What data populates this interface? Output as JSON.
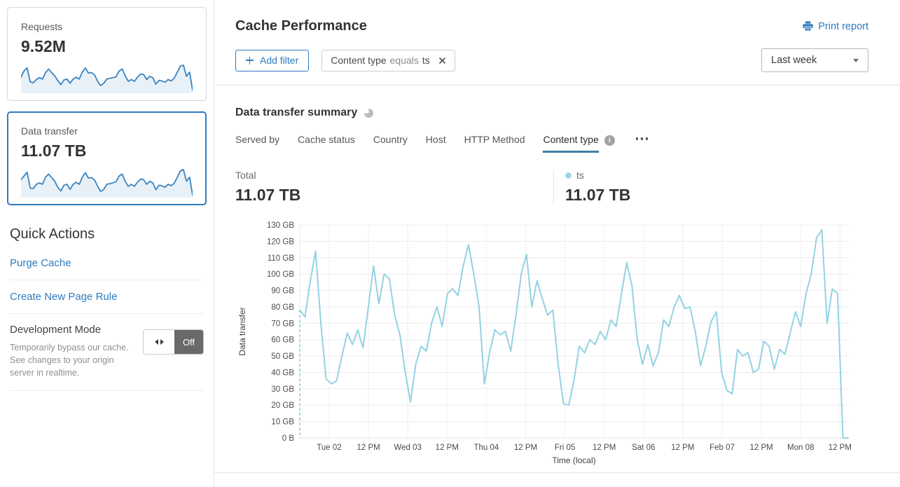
{
  "colors": {
    "accent_blue": "#2f7bbf",
    "chart_line": "#93d2e3",
    "legend_dot": "#9fd8e8",
    "tab_underline": "#3d7f9f",
    "sparkline_line": "#3e85c0",
    "sparkline_fill": "#e9f1f8",
    "selected_card_border": "#2f7bbf",
    "toggle_off_bg": "#67696b"
  },
  "sidebar": {
    "cards": [
      {
        "label": "Requests",
        "value": "9.52M",
        "selected": false
      },
      {
        "label": "Data transfer",
        "value": "11.07 TB",
        "selected": true
      }
    ],
    "quick_actions": {
      "title": "Quick Actions",
      "links": [
        {
          "label": "Purge Cache"
        },
        {
          "label": "Create New Page Rule"
        }
      ],
      "dev_mode": {
        "title": "Development Mode",
        "description": "Temporarily bypass our cache. See changes to your origin server in realtime.",
        "toggle_state": "Off"
      }
    }
  },
  "header": {
    "title": "Cache Performance",
    "print_label": "Print report"
  },
  "filters": {
    "add_filter_label": "Add filter",
    "chip": {
      "field": "Content type",
      "operator": "equals",
      "value": "ts"
    },
    "time_range": "Last week"
  },
  "summary": {
    "title": "Data transfer summary",
    "tabs": [
      "Served by",
      "Cache status",
      "Country",
      "Host",
      "HTTP Method",
      "Content type"
    ],
    "active_tab": "Content type",
    "stats": [
      {
        "label": "Total",
        "value": "11.07 TB"
      },
      {
        "label": "ts",
        "value": "11.07 TB",
        "dot_color": "#9fd8e8"
      }
    ]
  },
  "chart_data": [
    {
      "type": "line",
      "title": "Data transfer summary",
      "xlabel": "Time (local)",
      "ylabel": "Data transfer",
      "unit": "GB",
      "ylim": [
        0,
        130
      ],
      "grid": true,
      "line_color": "#93d2e3",
      "start_dashed": true,
      "legend_position": "top-right-stat",
      "x_ticks": [
        "Tue 02",
        "12 PM",
        "Wed 03",
        "12 PM",
        "Thu 04",
        "12 PM",
        "Fri 05",
        "12 PM",
        "Sat 06",
        "12 PM",
        "Feb 07",
        "12 PM",
        "Mon 08",
        "12 PM"
      ],
      "y_ticks": [
        "130 GB",
        "120 GB",
        "110 GB",
        "100 GB",
        "90 GB",
        "80 GB",
        "70 GB",
        "60 GB",
        "50 GB",
        "40 GB",
        "30 GB",
        "20 GB",
        "10 GB",
        "0 B"
      ],
      "series": [
        {
          "name": "ts",
          "total": "11.07 TB",
          "values_gb": [
            78,
            74,
            96,
            114,
            70,
            36,
            33,
            35,
            50,
            64,
            57,
            66,
            55,
            80,
            105,
            82,
            100,
            97,
            75,
            63,
            40,
            22,
            45,
            56,
            53,
            70,
            80,
            68,
            88,
            91,
            87,
            105,
            118,
            100,
            80,
            33,
            52,
            66,
            63,
            65,
            53,
            75,
            100,
            112,
            80,
            96,
            85,
            75,
            78,
            45,
            21,
            20,
            35,
            56,
            52,
            60,
            57,
            65,
            60,
            72,
            68,
            88,
            107,
            93,
            60,
            45,
            57,
            44,
            52,
            72,
            68,
            80,
            87,
            79,
            80,
            65,
            44,
            56,
            71,
            77,
            40,
            29,
            27,
            54,
            50,
            52,
            40,
            42,
            59,
            56,
            42,
            54,
            51,
            64,
            77,
            68,
            88,
            100,
            122,
            127,
            70,
            91,
            88,
            0,
            0
          ]
        }
      ]
    },
    {
      "type": "area",
      "title": "Requests sparkline",
      "values": [
        60,
        88,
        100,
        40,
        36,
        50,
        58,
        52,
        80,
        95,
        80,
        66,
        45,
        28,
        48,
        52,
        34,
        52,
        60,
        52,
        82,
        100,
        78,
        80,
        70,
        42,
        24,
        34,
        52,
        55,
        58,
        62,
        86,
        96,
        66,
        42,
        50,
        42,
        60,
        74,
        72,
        50,
        64,
        58,
        30,
        46,
        44,
        38,
        50,
        44,
        56,
        82,
        108,
        112,
        64,
        82,
        4
      ]
    },
    {
      "type": "area",
      "title": "Data transfer sparkline",
      "values": [
        78,
        96,
        114,
        36,
        34,
        55,
        62,
        55,
        90,
        105,
        88,
        70,
        40,
        22,
        50,
        55,
        30,
        55,
        65,
        55,
        90,
        112,
        85,
        88,
        76,
        45,
        20,
        30,
        55,
        58,
        62,
        68,
        95,
        105,
        70,
        45,
        55,
        45,
        65,
        80,
        78,
        55,
        70,
        62,
        28,
        50,
        48,
        40,
        55,
        48,
        60,
        90,
        120,
        127,
        70,
        90,
        2
      ]
    }
  ]
}
